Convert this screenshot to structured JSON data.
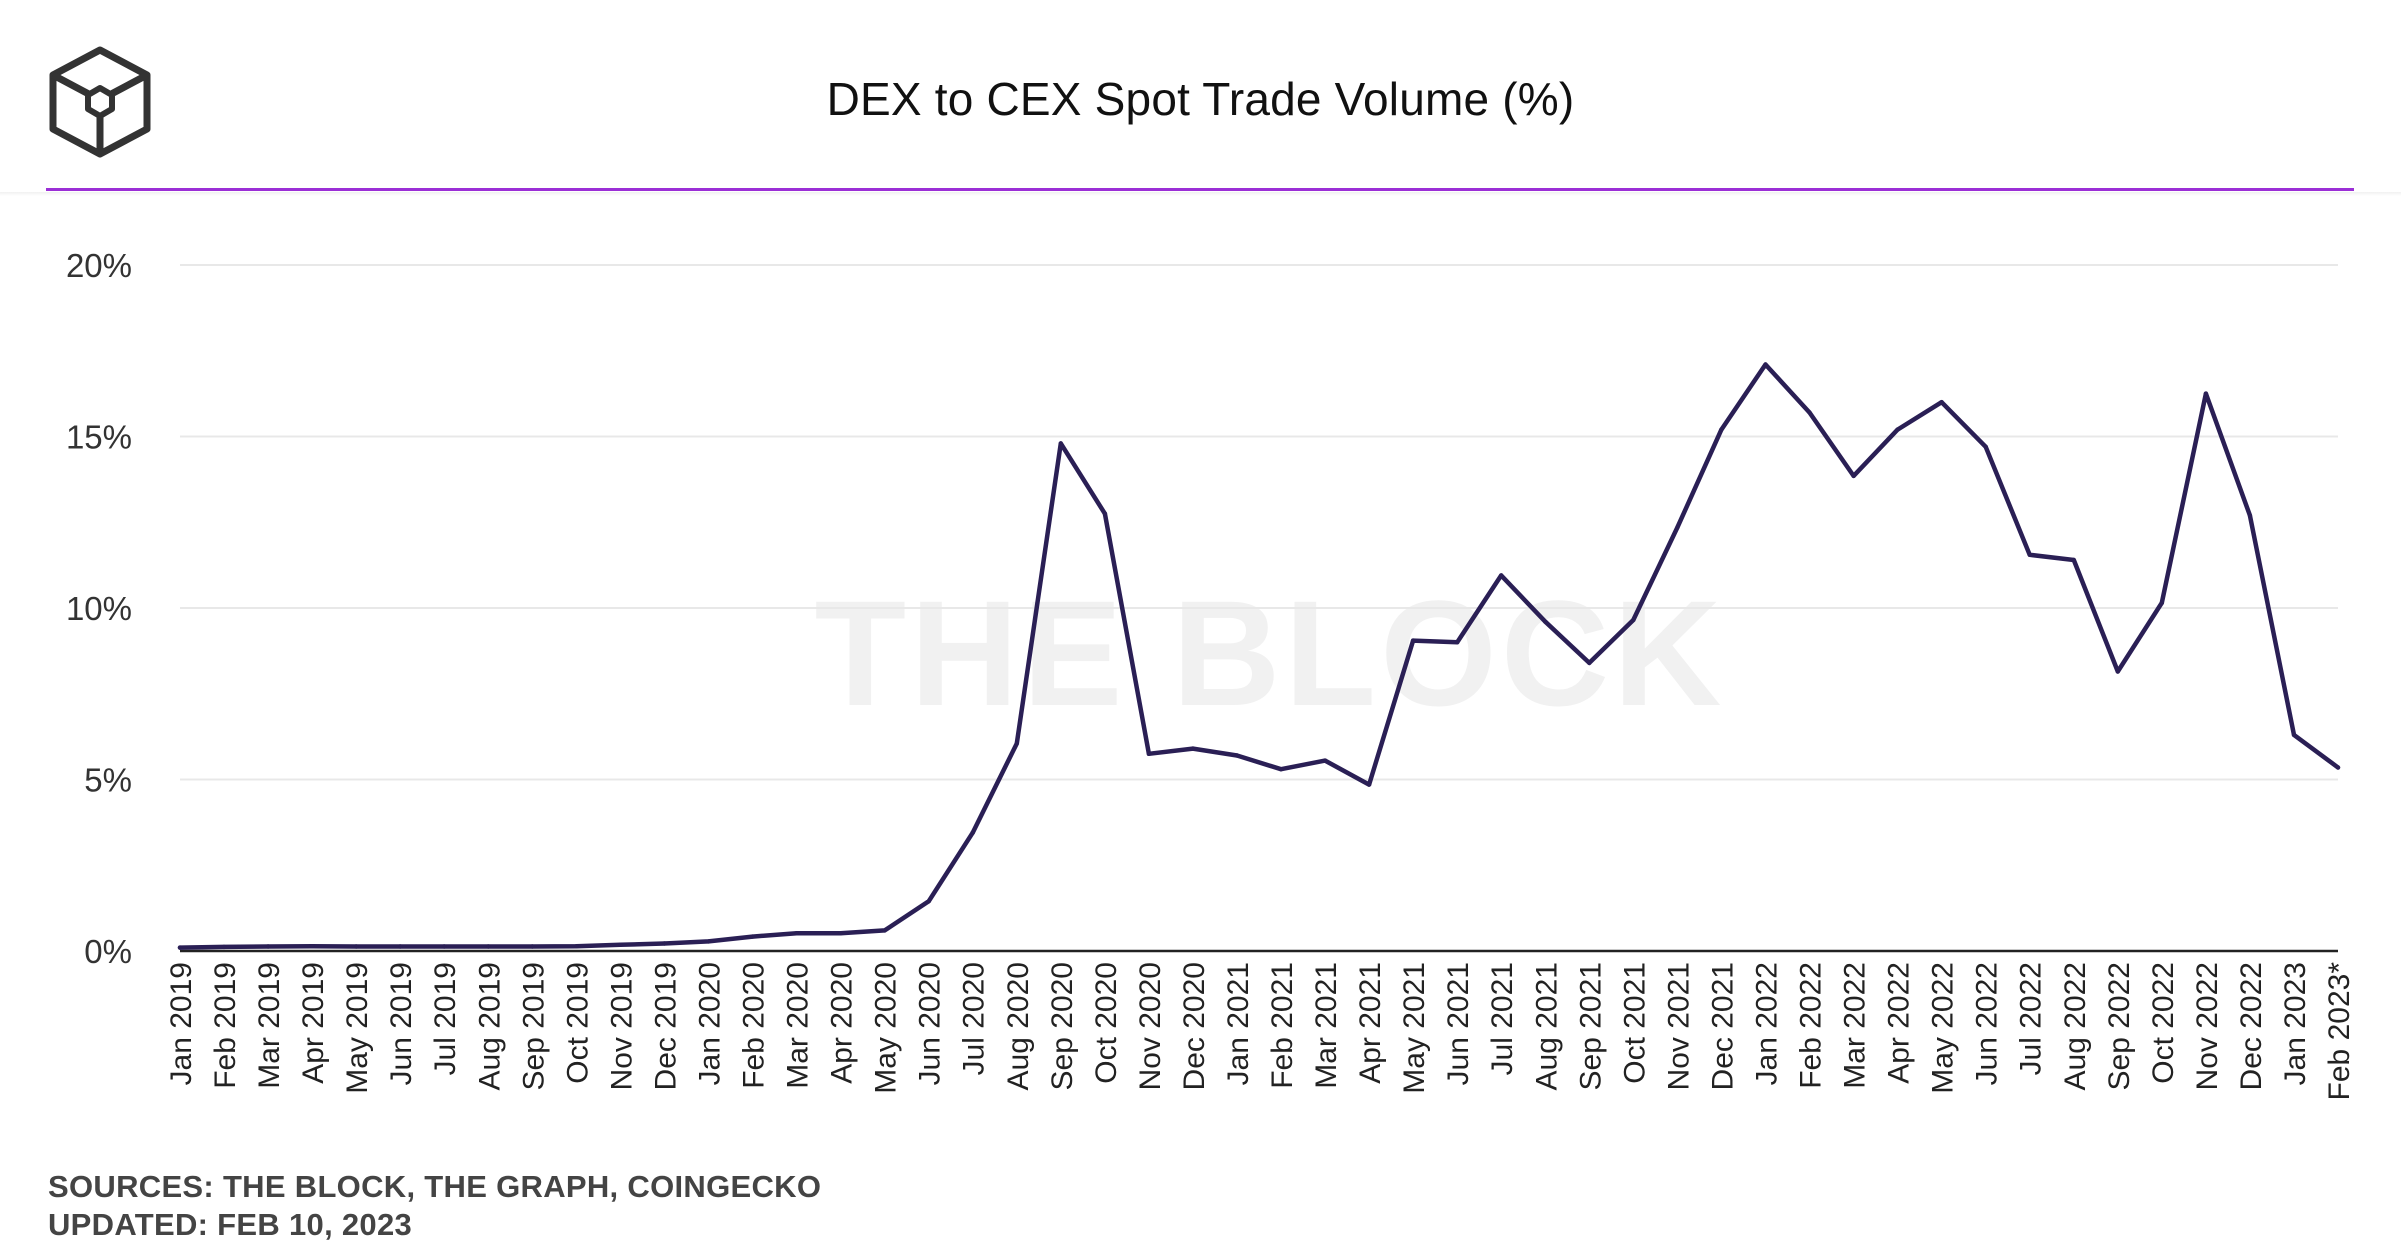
{
  "header": {
    "title": "DEX to CEX Spot Trade Volume (%)",
    "accent_color": "#9B2FD6"
  },
  "watermark": "THE BLOCK",
  "footer": {
    "sources": "SOURCES: THE BLOCK, THE GRAPH, COINGECKO",
    "updated": "UPDATED: FEB 10, 2023"
  },
  "chart_data": {
    "type": "line",
    "title": "DEX to CEX Spot Trade Volume (%)",
    "xlabel": "",
    "ylabel": "",
    "ylim": [
      0,
      20
    ],
    "yticks": [
      0,
      5,
      10,
      15,
      20
    ],
    "ytick_labels": [
      "0%",
      "5%",
      "10%",
      "15%",
      "20%"
    ],
    "grid": true,
    "legend": "none",
    "line_color": "#2A1F55",
    "categories": [
      "Jan 2019",
      "Feb 2019",
      "Mar 2019",
      "Apr 2019",
      "May 2019",
      "Jun 2019",
      "Jul 2019",
      "Aug 2019",
      "Sep 2019",
      "Oct 2019",
      "Nov 2019",
      "Dec 2019",
      "Jan 2020",
      "Feb 2020",
      "Mar 2020",
      "Apr 2020",
      "May 2020",
      "Jun 2020",
      "Jul 2020",
      "Aug 2020",
      "Sep 2020",
      "Oct 2020",
      "Nov 2020",
      "Dec 2020",
      "Jan 2021",
      "Feb 2021",
      "Mar 2021",
      "Apr 2021",
      "May 2021",
      "Jun 2021",
      "Jul 2021",
      "Aug 2021",
      "Sep 2021",
      "Oct 2021",
      "Nov 2021",
      "Dec 2021",
      "Jan 2022",
      "Feb 2022",
      "Mar 2022",
      "Apr 2022",
      "May 2022",
      "Jun 2022",
      "Jul 2022",
      "Aug 2022",
      "Sep 2022",
      "Oct 2022",
      "Nov 2022",
      "Dec 2022",
      "Jan 2023",
      "Feb 2023*"
    ],
    "series": [
      {
        "name": "DEX to CEX Spot Trade Volume (%)",
        "values": [
          0.1,
          0.12,
          0.13,
          0.14,
          0.13,
          0.13,
          0.13,
          0.13,
          0.13,
          0.14,
          0.18,
          0.22,
          0.28,
          0.42,
          0.52,
          0.52,
          0.6,
          1.45,
          3.45,
          6.05,
          14.8,
          12.75,
          5.75,
          5.9,
          5.7,
          5.3,
          5.55,
          4.85,
          9.05,
          9.0,
          10.95,
          9.6,
          8.4,
          9.65,
          12.35,
          15.2,
          17.1,
          15.7,
          13.85,
          15.2,
          16.0,
          14.7,
          11.55,
          11.4,
          8.15,
          10.15,
          16.25,
          12.7,
          6.3,
          5.35
        ]
      }
    ]
  }
}
